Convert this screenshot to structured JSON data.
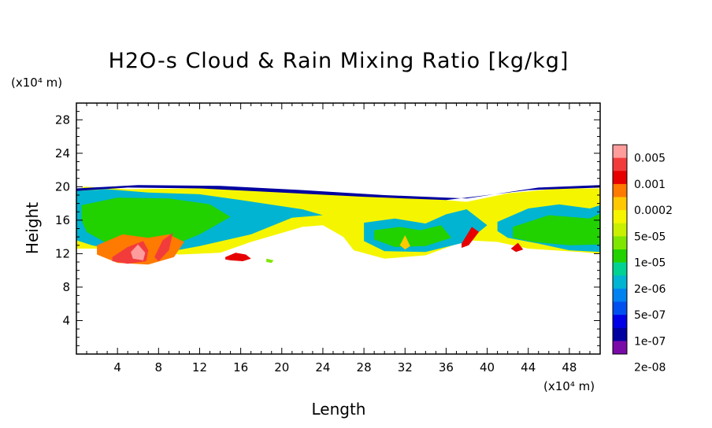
{
  "chart_data": {
    "type": "heatmap",
    "title": "H2O-s Cloud & Rain Mixing Ratio [kg/kg]",
    "xlabel": "Length",
    "ylabel": "Height",
    "x_unit": "(x10⁴ m)",
    "y_unit": "(x10⁴ m)",
    "xlim": [
      0,
      51
    ],
    "ylim": [
      0,
      30
    ],
    "x_ticks": [
      4,
      8,
      12,
      16,
      20,
      24,
      28,
      32,
      36,
      40,
      44,
      48
    ],
    "y_ticks": [
      4,
      8,
      12,
      16,
      20,
      24,
      28
    ],
    "colorbar": {
      "labels": [
        "0.005",
        "0.001",
        "0.0002",
        "5e-05",
        "1e-05",
        "2e-06",
        "5e-07",
        "1e-07",
        "2e-08"
      ],
      "colors": [
        "#ff9c9c",
        "#f23c3c",
        "#e60000",
        "#ff7a00",
        "#ffc800",
        "#f5f500",
        "#c8f000",
        "#7ee600",
        "#21d200",
        "#00d294",
        "#00b4d2",
        "#0082f0",
        "#0050f0",
        "#0000e6",
        "#0000a0",
        "#7a0aa8"
      ]
    },
    "regions": [
      {
        "level": 5,
        "x": [
          0,
          0.8,
          5,
          12,
          19,
          26,
          33,
          38,
          42,
          47,
          51,
          51,
          49,
          44,
          41,
          38,
          34,
          30,
          27,
          26,
          24,
          22,
          17,
          14,
          10,
          6,
          2,
          0
        ],
        "y": [
          19.6,
          20,
          19.7,
          19.8,
          19.4,
          19.1,
          18.7,
          18.2,
          19.2,
          19.8,
          19.8,
          12,
          12.2,
          12.6,
          13.4,
          13.6,
          11.8,
          11.4,
          12.4,
          14,
          15.4,
          15.2,
          13.4,
          12.1,
          11.9,
          12.6,
          12.6,
          12.6
        ]
      },
      {
        "level": 10,
        "x": [
          0,
          3,
          7,
          12,
          16,
          22,
          24,
          21,
          17,
          12,
          8,
          4,
          1.5,
          0
        ],
        "y": [
          19.5,
          19.7,
          19.3,
          19.1,
          18.4,
          17.3,
          16.6,
          16.3,
          14.3,
          12.9,
          12,
          12.4,
          13,
          13.6
        ]
      },
      {
        "level": 8,
        "x": [
          0.5,
          4,
          9,
          13,
          15,
          12,
          9,
          6,
          3,
          1,
          0.5
        ],
        "y": [
          17.8,
          18.7,
          18.6,
          17.9,
          16.4,
          14.3,
          12.8,
          12.6,
          13.2,
          14.6,
          16
        ]
      },
      {
        "level": 10,
        "x": [
          28,
          31,
          34,
          36,
          38,
          40,
          38,
          34,
          30,
          28
        ],
        "y": [
          15.7,
          16.2,
          15.6,
          16.7,
          17.3,
          15.4,
          13.4,
          12.2,
          12.3,
          13.5
        ]
      },
      {
        "level": 10,
        "x": [
          41,
          44,
          47,
          50,
          51,
          51,
          48,
          45,
          42,
          41
        ],
        "y": [
          15.8,
          17.4,
          17.9,
          17.4,
          17.8,
          12.2,
          12.4,
          13.2,
          13.9,
          14.7
        ]
      },
      {
        "level": 8,
        "x": [
          42.5,
          46,
          50,
          51,
          51,
          48,
          44.5,
          42.5
        ],
        "y": [
          15.2,
          16.6,
          16.2,
          16.8,
          13.1,
          13,
          13.4,
          13.9
        ]
      },
      {
        "level": 8,
        "x": [
          29,
          31.5,
          33.5,
          35.5,
          36.5,
          34,
          31,
          29
        ],
        "y": [
          14.8,
          15.2,
          14.8,
          15.4,
          13.9,
          12.9,
          12.8,
          13.7
        ]
      },
      {
        "level": 3,
        "x": [
          2,
          4.5,
          7,
          9,
          10.5,
          9.5,
          7,
          4,
          2
        ],
        "y": [
          13,
          14.3,
          13.9,
          14.3,
          13.4,
          11.6,
          10.7,
          10.9,
          11.9
        ]
      },
      {
        "level": 1,
        "x": [
          3.5,
          5,
          6.5,
          7,
          6.8,
          5,
          3.5
        ],
        "y": [
          11.6,
          12.8,
          13.5,
          12.4,
          11.1,
          10.8,
          11.1
        ]
      },
      {
        "level": 0,
        "x": [
          5.3,
          6,
          6.7,
          6.5,
          5.5
        ],
        "y": [
          12.2,
          13.1,
          12.1,
          11.2,
          11.4
        ]
      },
      {
        "level": 1,
        "x": [
          7.6,
          8.4,
          9.4,
          9,
          8
        ],
        "y": [
          11.6,
          13.6,
          14.5,
          12.4,
          11.1
        ]
      },
      {
        "level": 2,
        "x": [
          14.5,
          15.5,
          16.5,
          17,
          16.2,
          15,
          14.5
        ],
        "y": [
          11.6,
          12.1,
          11.9,
          11.4,
          11.1,
          11.2,
          11.3
        ]
      },
      {
        "level": 7,
        "x": [
          18.5,
          19.2,
          19,
          18.5
        ],
        "y": [
          11.4,
          11.2,
          10.9,
          11
        ]
      },
      {
        "level": 2,
        "x": [
          37.5,
          38.5,
          39.2,
          38.2,
          37.5
        ],
        "y": [
          13.2,
          15.2,
          14.6,
          13,
          12.7
        ]
      },
      {
        "level": 2,
        "x": [
          42.3,
          43,
          43.5,
          42.8
        ],
        "y": [
          12.6,
          13.3,
          12.5,
          12.2
        ]
      },
      {
        "level": 4,
        "x": [
          31.5,
          32,
          32.5,
          32
        ],
        "y": [
          13,
          14.2,
          12.9,
          12.5
        ]
      },
      {
        "level": 14,
        "x": [
          0,
          6,
          14,
          22,
          30,
          38,
          45,
          51,
          51,
          44,
          36,
          28,
          20,
          12,
          5,
          0
        ],
        "y": [
          19.8,
          20.2,
          20.1,
          19.6,
          19,
          18.6,
          19.9,
          20.2,
          19.9,
          19.6,
          18.4,
          18.8,
          19.3,
          19.8,
          19.9,
          19.5
        ]
      }
    ]
  }
}
